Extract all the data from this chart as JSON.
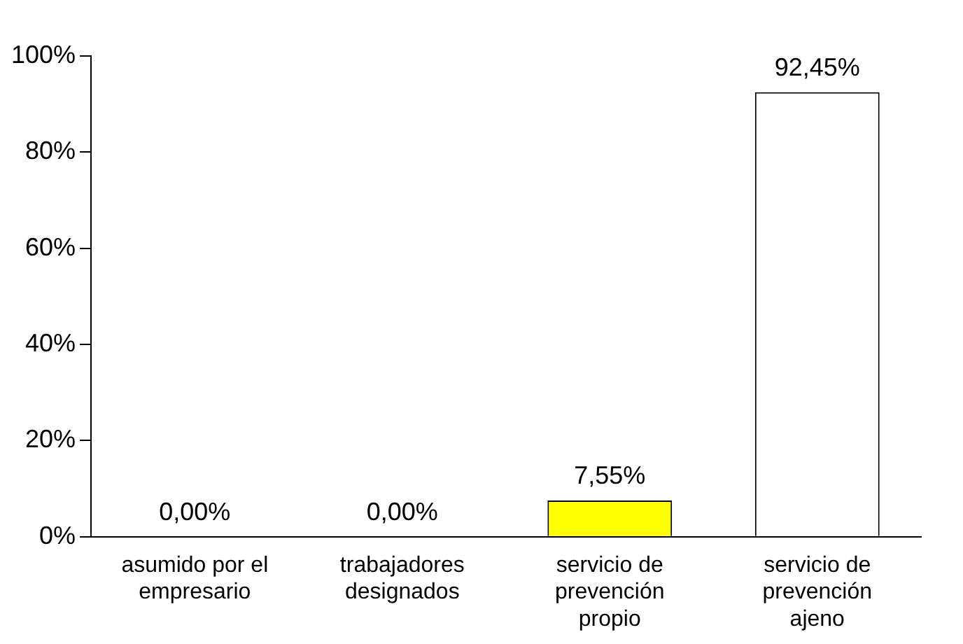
{
  "chart_data": {
    "type": "bar",
    "categories": [
      "asumido por el empresario",
      "trabajadores designados",
      "servicio de prevención propio",
      "servicio de prevención ajeno"
    ],
    "values": [
      0,
      0,
      7.55,
      92.45
    ],
    "colors": [
      "#660000",
      "#8080c0",
      "#ffff00",
      "#ffffff"
    ],
    "value_labels": [
      "0,00%",
      "0,00%",
      "7,55%",
      "92,45%"
    ],
    "ylim": [
      0,
      100
    ],
    "yticks": [
      {
        "value": 0,
        "label": "0%"
      },
      {
        "value": 20,
        "label": "20%"
      },
      {
        "value": 40,
        "label": "40%"
      },
      {
        "value": 60,
        "label": "60%"
      },
      {
        "value": 80,
        "label": "80%"
      },
      {
        "value": 100,
        "label": "100%"
      }
    ],
    "grid": false,
    "legend": false
  }
}
